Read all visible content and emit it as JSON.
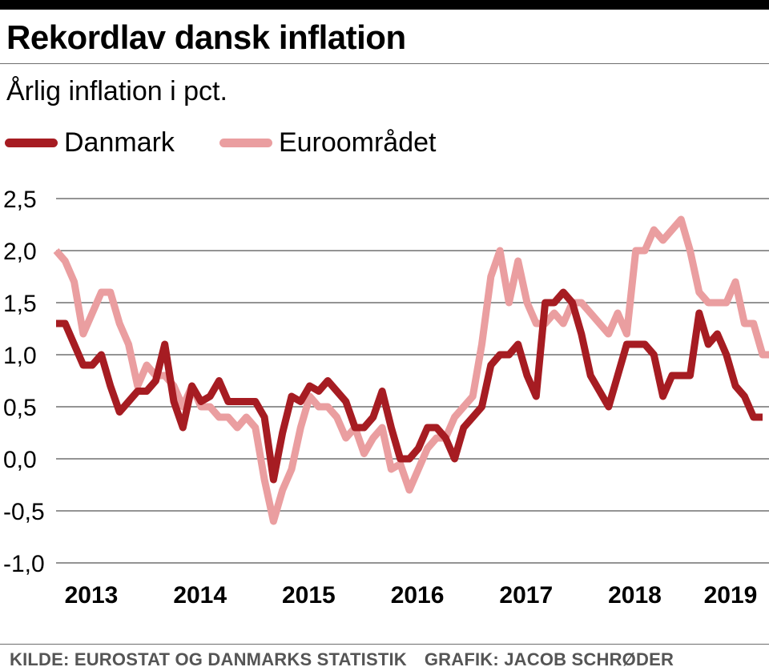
{
  "header": {
    "title": "Rekordlav dansk inflation",
    "subtitle": "Årlig inflation i pct."
  },
  "legend": [
    {
      "label": "Danmark",
      "color": "#a61c22"
    },
    {
      "label": "Euroområdet",
      "color": "#ea9ea0"
    }
  ],
  "footer": {
    "source": "KILDE: EUROSTAT OG DANMARKS STATISTIK",
    "credit": "GRAFIK: JACOB SCHRØDER"
  },
  "chart_data": {
    "type": "line",
    "title": "Rekordlav dansk inflation",
    "ylabel": "Årlig inflation i pct.",
    "xlabel": "",
    "ylim": [
      -1.0,
      2.5
    ],
    "yticks": [
      2.5,
      2.0,
      1.5,
      1.0,
      0.5,
      0.0,
      -0.5,
      -1.0
    ],
    "ytick_labels": [
      "2,5",
      "2,0",
      "1,5",
      "1,0",
      "0,5",
      "0,0",
      "-0,5",
      "-1,0"
    ],
    "xticks": [
      "2013",
      "2014",
      "2015",
      "2016",
      "2017",
      "2018",
      "2019"
    ],
    "x_start": "2013-01",
    "x_unit": "month",
    "grid": true,
    "series": [
      {
        "name": "Danmark",
        "color": "#a61c22",
        "values": [
          1.3,
          1.3,
          1.1,
          0.9,
          0.9,
          1.0,
          0.7,
          0.45,
          0.55,
          0.65,
          0.65,
          0.75,
          1.1,
          0.55,
          0.3,
          0.7,
          0.55,
          0.6,
          0.75,
          0.55,
          0.55,
          0.55,
          0.55,
          0.4,
          -0.2,
          0.25,
          0.6,
          0.55,
          0.7,
          0.65,
          0.75,
          0.65,
          0.55,
          0.3,
          0.3,
          0.4,
          0.65,
          0.3,
          0.0,
          0.0,
          0.1,
          0.3,
          0.3,
          0.2,
          0.0,
          0.3,
          0.4,
          0.5,
          0.9,
          1.0,
          1.0,
          1.1,
          0.8,
          0.6,
          1.5,
          1.5,
          1.6,
          1.5,
          1.2,
          0.8,
          0.65,
          0.5,
          0.8,
          1.1,
          1.1,
          1.1,
          1.0,
          0.6,
          0.8,
          0.8,
          0.8,
          1.4,
          1.1,
          1.2,
          1.0,
          0.7,
          0.6,
          0.4,
          0.4
        ]
      },
      {
        "name": "Euroområdet",
        "color": "#ea9ea0",
        "values": [
          2.0,
          1.9,
          1.7,
          1.2,
          1.4,
          1.6,
          1.6,
          1.3,
          1.1,
          0.7,
          0.9,
          0.8,
          0.8,
          0.7,
          0.5,
          0.7,
          0.5,
          0.5,
          0.4,
          0.4,
          0.3,
          0.4,
          0.3,
          -0.2,
          -0.6,
          -0.3,
          -0.1,
          0.3,
          0.6,
          0.5,
          0.5,
          0.4,
          0.2,
          0.3,
          0.05,
          0.2,
          0.3,
          -0.1,
          -0.05,
          -0.3,
          -0.1,
          0.1,
          0.2,
          0.2,
          0.4,
          0.5,
          0.6,
          1.1,
          1.75,
          2.0,
          1.5,
          1.9,
          1.5,
          1.3,
          1.3,
          1.4,
          1.3,
          1.5,
          1.5,
          1.4,
          1.3,
          1.2,
          1.4,
          1.2,
          2.0,
          2.0,
          2.2,
          2.1,
          2.2,
          2.3,
          2.0,
          1.6,
          1.5,
          1.5,
          1.5,
          1.7,
          1.3,
          1.3,
          1.0,
          1.0
        ]
      }
    ]
  }
}
